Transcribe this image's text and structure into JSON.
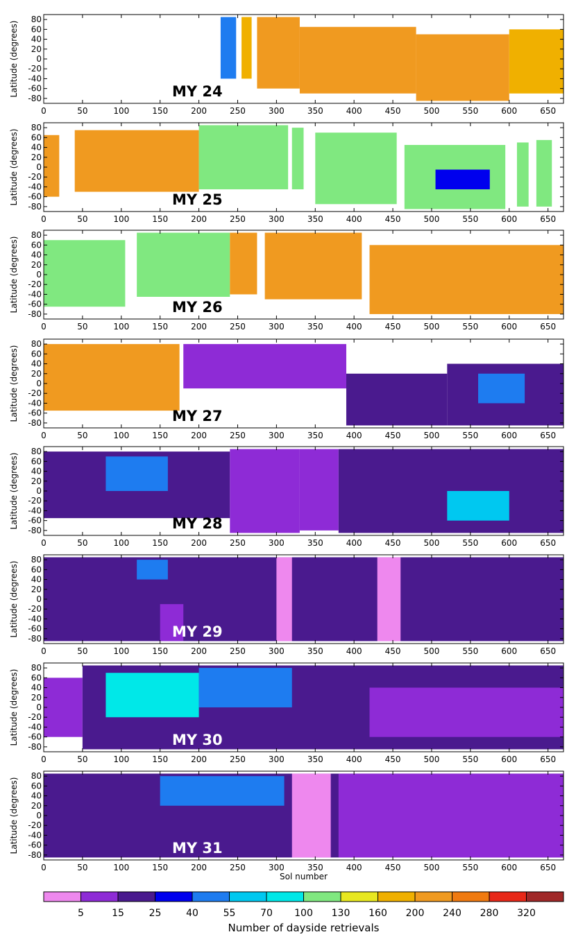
{
  "chart_data": {
    "type": "heatmap",
    "panels": [
      {
        "label": "MY 24",
        "label_color": "#000000",
        "blocks": [
          {
            "x0": 228,
            "x1": 248,
            "lat0": -40,
            "lat1": 85,
            "level": 4
          },
          {
            "x0": 255,
            "x1": 268,
            "lat0": -40,
            "lat1": 85,
            "level": 9
          },
          {
            "x0": 275,
            "x1": 330,
            "lat0": -60,
            "lat1": 85,
            "level": 10
          },
          {
            "x0": 330,
            "x1": 480,
            "lat0": -70,
            "lat1": 65,
            "level": 10
          },
          {
            "x0": 480,
            "x1": 600,
            "lat0": -85,
            "lat1": 50,
            "level": 10
          },
          {
            "x0": 600,
            "x1": 670,
            "lat0": -70,
            "lat1": 60,
            "level": 9
          }
        ]
      },
      {
        "label": "MY 25",
        "label_color": "#000000",
        "blocks": [
          {
            "x0": 0,
            "x1": 20,
            "lat0": -60,
            "lat1": 65,
            "level": 10
          },
          {
            "x0": 40,
            "x1": 200,
            "lat0": -50,
            "lat1": 75,
            "level": 10
          },
          {
            "x0": 200,
            "x1": 315,
            "lat0": -45,
            "lat1": 85,
            "level": 7
          },
          {
            "x0": 320,
            "x1": 335,
            "lat0": -45,
            "lat1": 80,
            "level": 7
          },
          {
            "x0": 350,
            "x1": 455,
            "lat0": -75,
            "lat1": 70,
            "level": 7
          },
          {
            "x0": 465,
            "x1": 595,
            "lat0": -85,
            "lat1": 45,
            "level": 7
          },
          {
            "x0": 505,
            "x1": 575,
            "lat0": -45,
            "lat1": -5,
            "level": 3
          },
          {
            "x0": 610,
            "x1": 625,
            "lat0": -80,
            "lat1": 50,
            "level": 7
          },
          {
            "x0": 635,
            "x1": 655,
            "lat0": -80,
            "lat1": 55,
            "level": 7
          }
        ]
      },
      {
        "label": "MY 26",
        "label_color": "#000000",
        "blocks": [
          {
            "x0": 0,
            "x1": 105,
            "lat0": -65,
            "lat1": 70,
            "level": 7
          },
          {
            "x0": 120,
            "x1": 240,
            "lat0": -45,
            "lat1": 85,
            "level": 7
          },
          {
            "x0": 240,
            "x1": 275,
            "lat0": -40,
            "lat1": 85,
            "level": 10
          },
          {
            "x0": 285,
            "x1": 410,
            "lat0": -50,
            "lat1": 85,
            "level": 10
          },
          {
            "x0": 420,
            "x1": 670,
            "lat0": -80,
            "lat1": 60,
            "level": 10
          }
        ]
      },
      {
        "label": "MY 27",
        "label_color": "#000000",
        "blocks": [
          {
            "x0": 0,
            "x1": 175,
            "lat0": -55,
            "lat1": 80,
            "level": 10
          },
          {
            "x0": 180,
            "x1": 390,
            "lat0": -10,
            "lat1": 80,
            "level": 1
          },
          {
            "x0": 390,
            "x1": 520,
            "lat0": -85,
            "lat1": 20,
            "level": 2
          },
          {
            "x0": 520,
            "x1": 670,
            "lat0": -85,
            "lat1": 40,
            "level": 2
          },
          {
            "x0": 560,
            "x1": 620,
            "lat0": -40,
            "lat1": 20,
            "level": 4
          }
        ]
      },
      {
        "label": "MY 28",
        "label_color": "#000000",
        "blocks": [
          {
            "x0": 0,
            "x1": 240,
            "lat0": -55,
            "lat1": 80,
            "level": 2
          },
          {
            "x0": 80,
            "x1": 160,
            "lat0": 0,
            "lat1": 70,
            "level": 4
          },
          {
            "x0": 240,
            "x1": 330,
            "lat0": -85,
            "lat1": 85,
            "level": 1
          },
          {
            "x0": 330,
            "x1": 380,
            "lat0": -80,
            "lat1": 85,
            "level": 1
          },
          {
            "x0": 380,
            "x1": 670,
            "lat0": -85,
            "lat1": 85,
            "level": 2
          },
          {
            "x0": 520,
            "x1": 600,
            "lat0": -60,
            "lat1": 0,
            "level": 5
          }
        ]
      },
      {
        "label": "MY 29",
        "label_color": "#ffffff",
        "blocks": [
          {
            "x0": 0,
            "x1": 670,
            "lat0": -85,
            "lat1": 85,
            "level": 2
          },
          {
            "x0": 150,
            "x1": 180,
            "lat0": -85,
            "lat1": -10,
            "level": 1
          },
          {
            "x0": 300,
            "x1": 320,
            "lat0": -85,
            "lat1": 85,
            "level": 0
          },
          {
            "x0": 430,
            "x1": 460,
            "lat0": -85,
            "lat1": 85,
            "level": 0
          },
          {
            "x0": 120,
            "x1": 160,
            "lat0": 40,
            "lat1": 80,
            "level": 4
          }
        ]
      },
      {
        "label": "MY 30",
        "label_color": "#ffffff",
        "blocks": [
          {
            "x0": 0,
            "x1": 50,
            "lat0": -60,
            "lat1": 60,
            "level": 1
          },
          {
            "x0": 50,
            "x1": 670,
            "lat0": -85,
            "lat1": 85,
            "level": 2
          },
          {
            "x0": 80,
            "x1": 200,
            "lat0": -20,
            "lat1": 70,
            "level": 6
          },
          {
            "x0": 200,
            "x1": 320,
            "lat0": 0,
            "lat1": 80,
            "level": 4
          },
          {
            "x0": 420,
            "x1": 670,
            "lat0": -60,
            "lat1": 40,
            "level": 1
          }
        ]
      },
      {
        "label": "MY 31",
        "label_color": "#ffffff",
        "blocks": [
          {
            "x0": 0,
            "x1": 670,
            "lat0": -85,
            "lat1": 85,
            "level": 2
          },
          {
            "x0": 150,
            "x1": 310,
            "lat0": 20,
            "lat1": 80,
            "level": 4
          },
          {
            "x0": 320,
            "x1": 370,
            "lat0": -85,
            "lat1": 85,
            "level": 0
          },
          {
            "x0": 380,
            "x1": 670,
            "lat0": -85,
            "lat1": 85,
            "level": 1
          }
        ]
      }
    ],
    "x_axis": {
      "range": [
        0,
        670
      ],
      "ticks": [
        0,
        50,
        100,
        150,
        200,
        250,
        300,
        350,
        400,
        450,
        500,
        550,
        600,
        650
      ],
      "label": "Sol number"
    },
    "y_axis": {
      "range": [
        -90,
        90
      ],
      "ticks": [
        80,
        60,
        40,
        20,
        0,
        -20,
        -40,
        -60,
        -80
      ],
      "label": "Latitude (degrees)"
    },
    "colorbar": {
      "title": "Number of dayside retrievals",
      "tick_labels": [
        "5",
        "15",
        "25",
        "40",
        "55",
        "70",
        "100",
        "130",
        "160",
        "200",
        "240",
        "280",
        "320"
      ],
      "colors": [
        "#ee88ee",
        "#8e2bd6",
        "#4a1a8e",
        "#0000ee",
        "#1e7cf0",
        "#00c8f0",
        "#00e8e8",
        "#80e880",
        "#e8e820",
        "#f0b000",
        "#f09a20",
        "#f07a10",
        "#e82818",
        "#a02828"
      ]
    }
  }
}
